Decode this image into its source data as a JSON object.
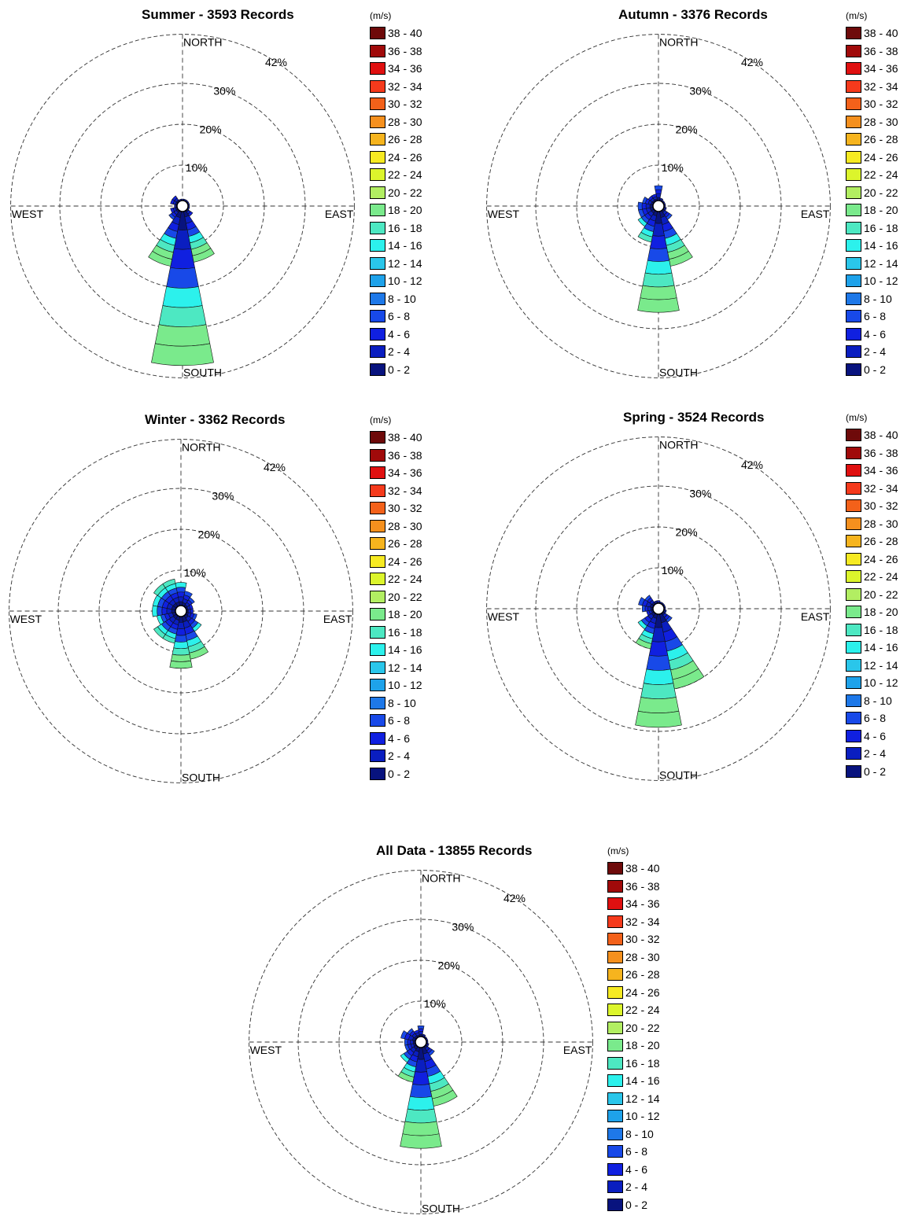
{
  "unit_label": "(m/s)",
  "speed_bins": [
    "38 - 40",
    "36 - 38",
    "34 - 36",
    "32 - 34",
    "30 - 32",
    "28 - 30",
    "26 - 28",
    "24 - 26",
    "22 - 24",
    "20 - 22",
    "18 - 20",
    "16 - 18",
    "14 - 16",
    "12 - 14",
    "10 - 12",
    "8 - 10",
    "6 - 8",
    "4 - 6",
    "2 - 4",
    "0 - 2"
  ],
  "bin_colors": [
    "#6e0a0a",
    "#a00a0a",
    "#e01010",
    "#f53a1c",
    "#f3611a",
    "#f5901e",
    "#f6b41e",
    "#f6ea22",
    "#dcf52c",
    "#b2ee62",
    "#7aea8c",
    "#4de8c2",
    "#2cf1ec",
    "#2ac6ea",
    "#1ea2ea",
    "#1e78e8",
    "#1849e8",
    "#1020e0",
    "#0a1ec0",
    "#08137e"
  ],
  "rings": [
    "10%",
    "20%",
    "30%",
    "42%"
  ],
  "directions": {
    "north": "NORTH",
    "south": "SOUTH",
    "east": "EAST",
    "west": "WEST"
  },
  "chart_data": [
    {
      "type": "windrose",
      "title": "Summer - 3593 Records",
      "rlim": [
        0,
        42
      ],
      "directions_deg": [
        0,
        22.5,
        45,
        67.5,
        90,
        112.5,
        135,
        157.5,
        180,
        202.5,
        225,
        247.5,
        270,
        292.5,
        315,
        337.5
      ],
      "frequency_pct": [
        1,
        0.5,
        0.3,
        0.3,
        0.3,
        1,
        3,
        14,
        39,
        15,
        4,
        3,
        2,
        3,
        3,
        1
      ]
    },
    {
      "type": "windrose",
      "title": "Autumn - 3376 Records",
      "rlim": [
        0,
        42
      ],
      "directions_deg": [
        0,
        22.5,
        45,
        67.5,
        90,
        112.5,
        135,
        157.5,
        180,
        202.5,
        225,
        247.5,
        270,
        292.5,
        315,
        337.5
      ],
      "frequency_pct": [
        5,
        2,
        1,
        1,
        1,
        2,
        4,
        15,
        26,
        9,
        6,
        5,
        5,
        4,
        3,
        3
      ]
    },
    {
      "type": "windrose",
      "title": "Winter - 3362 Records",
      "rlim": [
        0,
        42
      ],
      "directions_deg": [
        0,
        22.5,
        45,
        67.5,
        90,
        112.5,
        135,
        157.5,
        180,
        202.5,
        225,
        247.5,
        270,
        292.5,
        315,
        337.5
      ],
      "frequency_pct": [
        7,
        5,
        4,
        3,
        3,
        4,
        6,
        12,
        14,
        8,
        8,
        6,
        7,
        7,
        8,
        8
      ]
    },
    {
      "type": "windrose",
      "title": "Spring - 3524 Records",
      "rlim": [
        0,
        42
      ],
      "directions_deg": [
        0,
        22.5,
        45,
        67.5,
        90,
        112.5,
        135,
        157.5,
        180,
        202.5,
        225,
        247.5,
        270,
        292.5,
        315,
        337.5
      ],
      "frequency_pct": [
        2,
        1,
        0.5,
        0.5,
        0.5,
        2,
        4,
        20,
        29,
        10,
        6,
        3,
        4,
        5,
        4,
        2
      ]
    },
    {
      "type": "windrose",
      "title": "All Data - 13855 Records",
      "rlim": [
        0,
        42
      ],
      "directions_deg": [
        0,
        22.5,
        45,
        67.5,
        90,
        112.5,
        135,
        157.5,
        180,
        202.5,
        225,
        247.5,
        270,
        292.5,
        315,
        337.5
      ],
      "frequency_pct": [
        4,
        2,
        1,
        1,
        1,
        2,
        4,
        16,
        26,
        10,
        6,
        4,
        4,
        5,
        4,
        3
      ]
    }
  ]
}
